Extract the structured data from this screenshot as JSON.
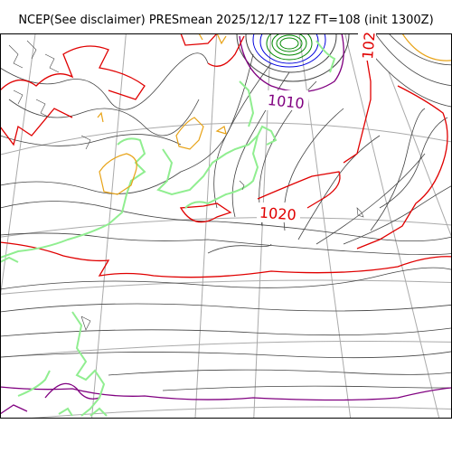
{
  "title": "NCEP(See disclaimer) PRESmean 2025/12/17 12Z FT=108 (init 1300Z)",
  "contour_labels": [
    {
      "text": "1010",
      "color": "#800080"
    },
    {
      "text": "1020",
      "color": "#e00000"
    },
    {
      "text": "102",
      "color": "#e00000"
    }
  ],
  "colors": {
    "isobar": "#444444",
    "isobar_1020": "#e00000",
    "isobar_1010": "#800080",
    "coastline": "#90ee90",
    "lake_boundary": "#e8a317",
    "graticule": "#aaaaaa",
    "frame": "#000000",
    "low_center_blue": "#0000dd",
    "low_center_green": "#008800"
  }
}
